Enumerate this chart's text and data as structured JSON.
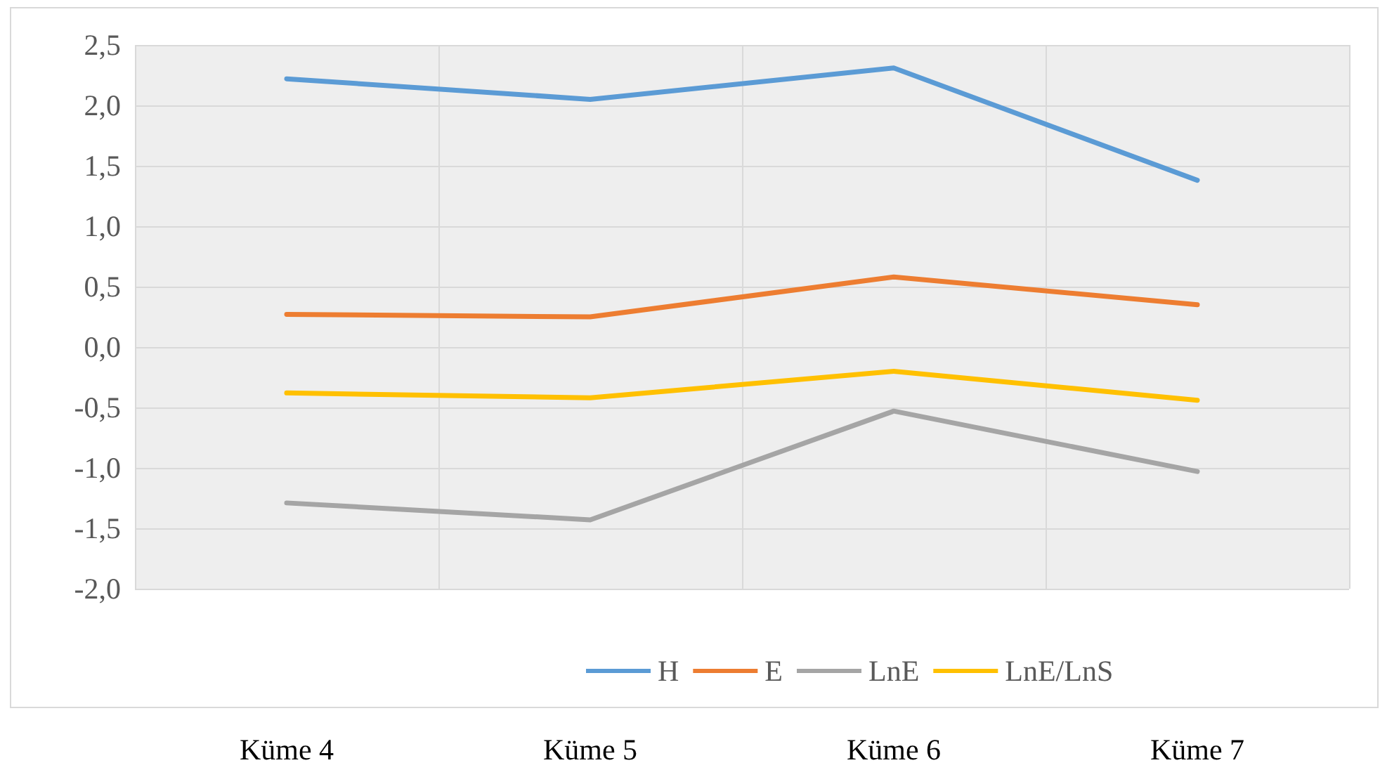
{
  "chart_data": {
    "type": "line",
    "categories": [
      "Küme 4",
      "Küme 5",
      "Küme 6",
      "Küme 7"
    ],
    "series": [
      {
        "name": "H",
        "color": "#5b9bd5",
        "values": [
          2.22,
          2.05,
          2.31,
          1.38
        ]
      },
      {
        "name": "E",
        "color": "#ed7d31",
        "values": [
          0.27,
          0.25,
          0.58,
          0.35
        ]
      },
      {
        "name": "LnE",
        "color": "#a5a5a5",
        "values": [
          -1.29,
          -1.43,
          -0.53,
          -1.03
        ]
      },
      {
        "name": "LnE/LnS",
        "color": "#ffc000",
        "values": [
          -0.38,
          -0.42,
          -0.2,
          -0.44
        ]
      }
    ],
    "ylim": [
      -2.0,
      2.5
    ],
    "yticks": [
      {
        "value": -2.0,
        "label": "-2,0"
      },
      {
        "value": -1.5,
        "label": "-1,5"
      },
      {
        "value": -1.0,
        "label": "-1,0"
      },
      {
        "value": -0.5,
        "label": "-0,5"
      },
      {
        "value": 0,
        "label": "0,0"
      },
      {
        "value": 0.5,
        "label": "0,5"
      },
      {
        "value": 1.0,
        "label": "1,0"
      },
      {
        "value": 1.5,
        "label": "1,5"
      },
      {
        "value": 2.0,
        "label": "2,0"
      },
      {
        "value": 2.5,
        "label": "2,5"
      }
    ],
    "grid": true,
    "legend": "bottom",
    "marker": "none",
    "line_style": "solid"
  }
}
